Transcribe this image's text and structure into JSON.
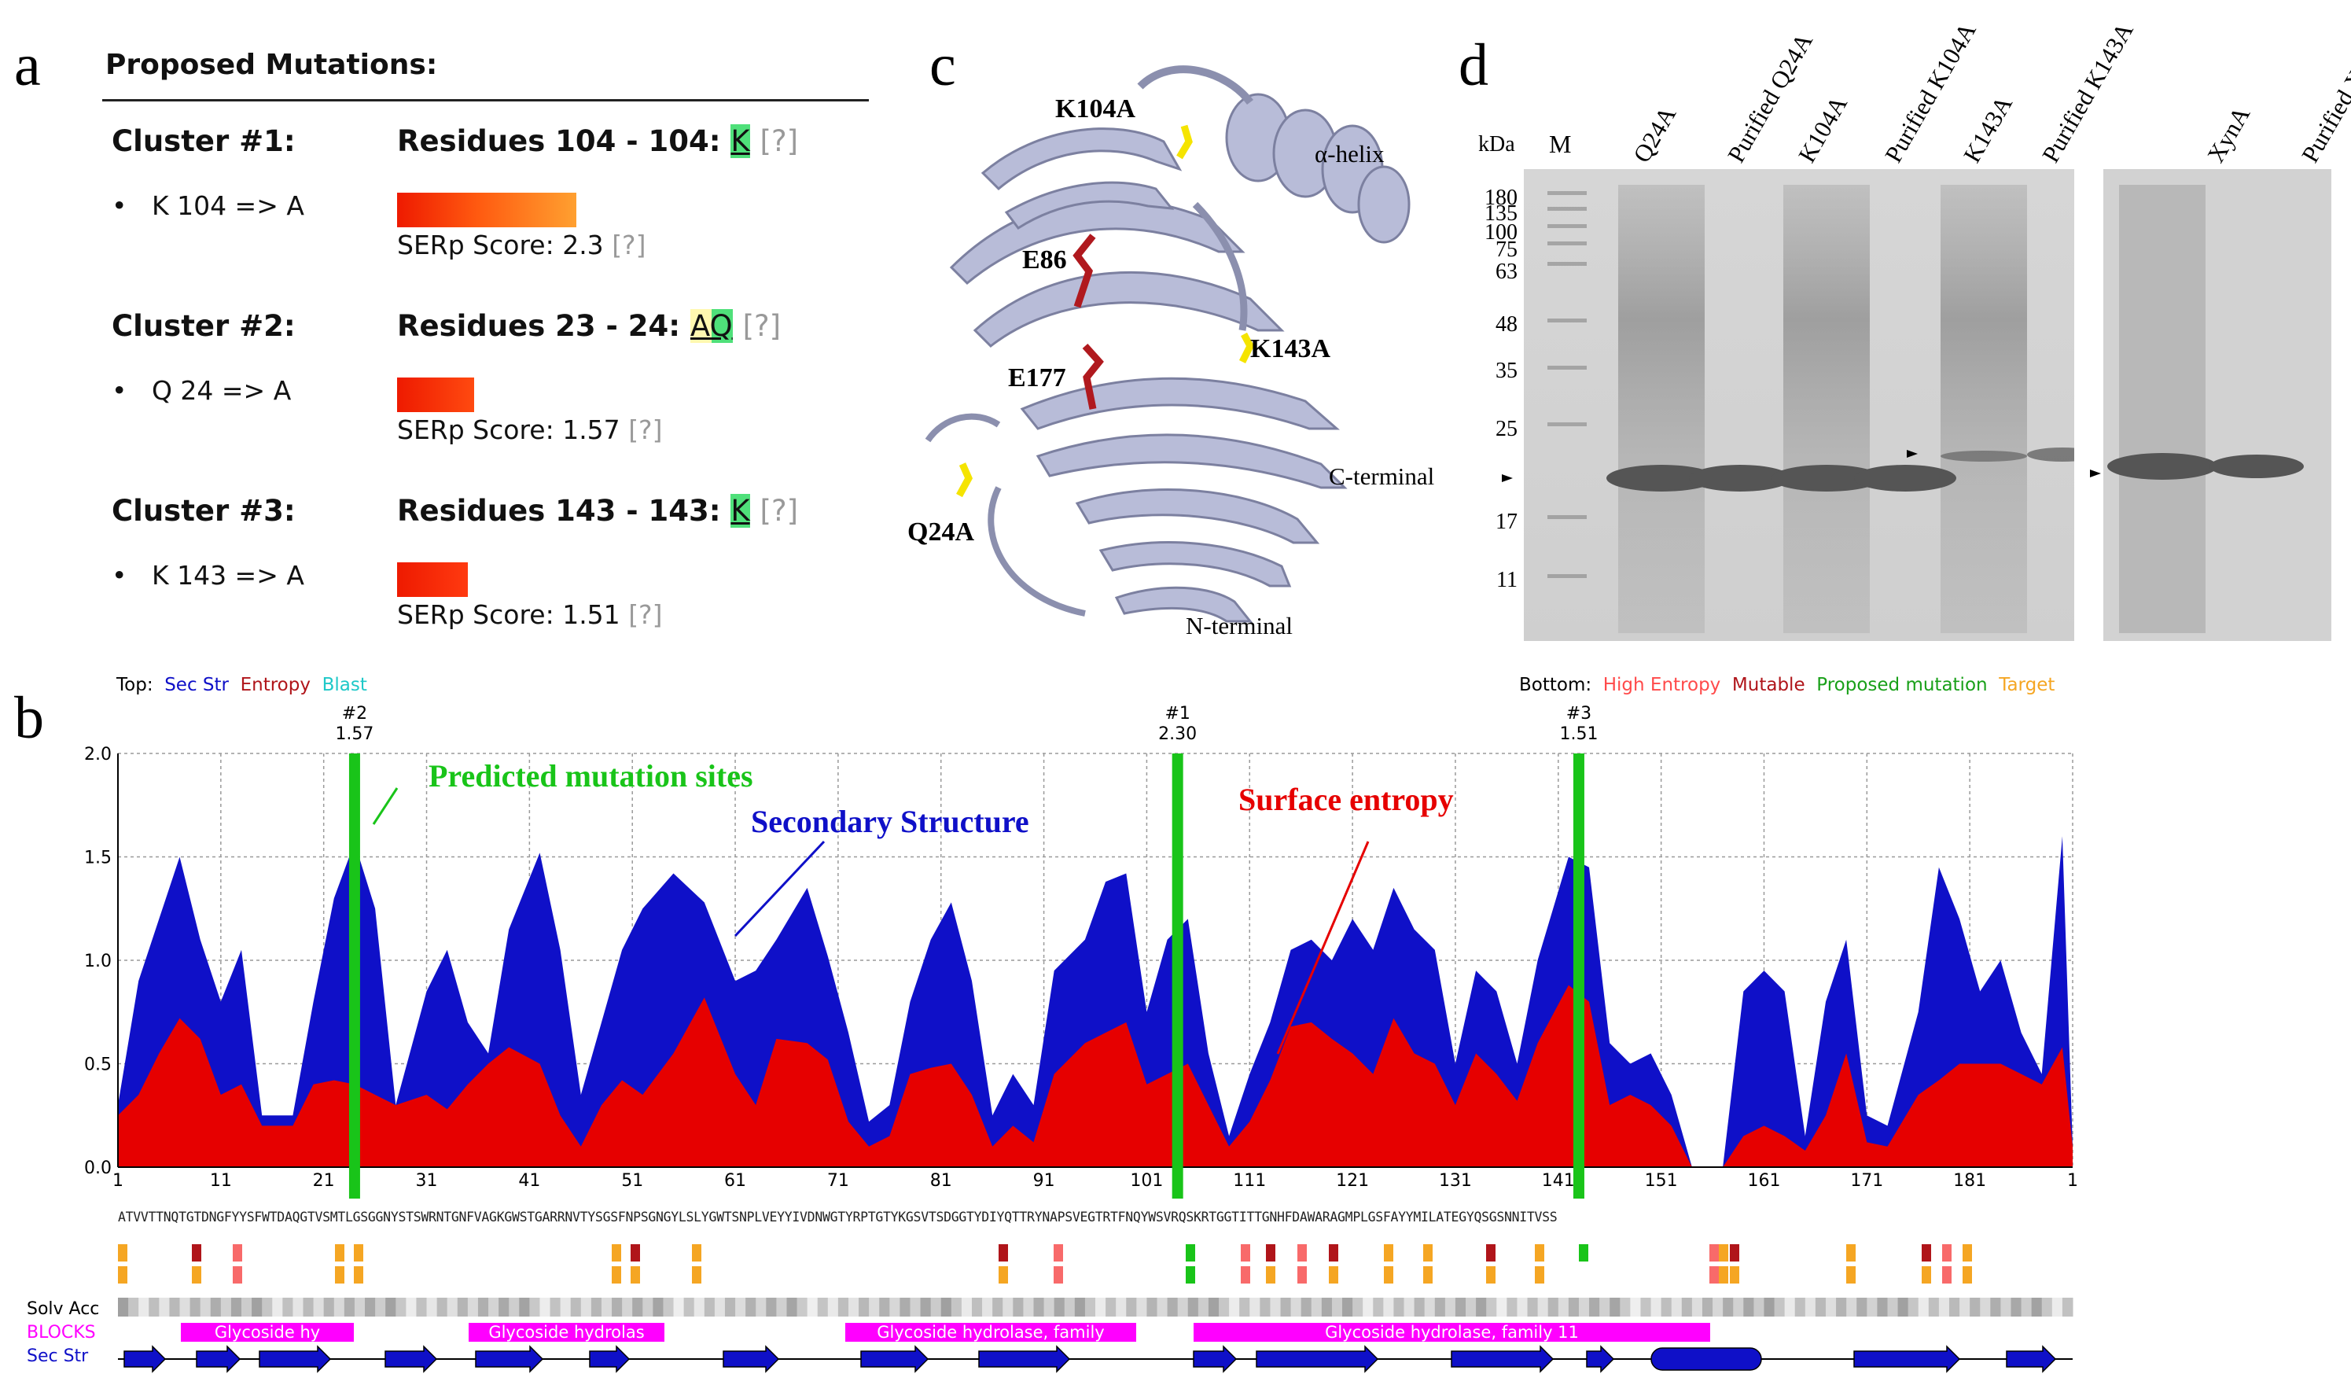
{
  "panels": {
    "a": "a",
    "b": "b",
    "c": "c",
    "d": "d"
  },
  "panel_a": {
    "title": "Proposed Mutations:",
    "clusters": [
      {
        "head": "Cluster #1:",
        "mutation": "K 104 => A",
        "residues_prefix": "Residues 104 - 104: ",
        "residues_hl": "K",
        "help": "[?]",
        "score_label": "SERp Score: 2.3",
        "score_help": "[?]",
        "score": 2.3
      },
      {
        "head": "Cluster #2:",
        "mutation": "Q 24 => A",
        "residues_prefix": "Residues 23 - 24: ",
        "residues_hl": "AQ",
        "help": "[?]",
        "score_label": "SERp Score: 1.57",
        "score_help": "[?]",
        "score": 1.57
      },
      {
        "head": "Cluster #3:",
        "mutation": "K 143 => A",
        "residues_prefix": "Residues 143 - 143: ",
        "residues_hl": "K",
        "help": "[?]",
        "score_label": "SERp Score: 1.51",
        "score_help": "[?]",
        "score": 1.51
      }
    ],
    "bullet": "•"
  },
  "panel_c": {
    "labels": {
      "k104": "K104A",
      "helix": "α-helix",
      "e86": "E86",
      "k143": "K143A",
      "e177": "E177",
      "cterm": "C-terminal",
      "q24": "Q24A",
      "nterm": "N-terminal"
    },
    "colors": {
      "ribbon": "#b8bcd8",
      "ribbon_dark": "#8b8fae",
      "active": "#b0191e",
      "mut": "#f5e400"
    }
  },
  "panel_d": {
    "kda_label": "kDa",
    "marker_label": "M",
    "lanes": [
      "Q24A",
      "Purified Q24A",
      "K104A",
      "Purified K104A",
      "K143A",
      "Purified K143A",
      "XynA",
      "Purified XynA"
    ],
    "mw": [
      "180",
      "135",
      "100",
      "75",
      "63",
      "48",
      "35",
      "25",
      "17",
      "11"
    ]
  },
  "panel_b": {
    "legend_top": {
      "prefix": "Top:",
      "sec": "Sec Str",
      "entropy": "Entropy",
      "blast": "Blast"
    },
    "legend_bottom": {
      "prefix": "Bottom:",
      "high": "High Entropy",
      "mutable": "Mutable",
      "proposed": "Proposed mutation",
      "target": "Target"
    },
    "markers": [
      {
        "id": "#2",
        "score": "1.57",
        "pos": 24
      },
      {
        "id": "#1",
        "score": "2.30",
        "pos": 104
      },
      {
        "id": "#3",
        "score": "1.51",
        "pos": 143
      }
    ],
    "annotations": {
      "predicted": "Predicted mutation sites",
      "secondary": "Secondary Structure",
      "surface": "Surface entropy"
    },
    "row_labels": {
      "solv": "Solv Acc",
      "blocks": "BLOCKS",
      "sec": "Sec Str"
    },
    "blocks": [
      "Glycoside hy",
      "Glycoside hydrolas",
      "Glycoside hydrolase, family",
      "Glycoside hydrolase, family 11"
    ],
    "sequence": "ATVVTTNQTGTDNGFYYSFWTDAQGTVSMTLGSGGNYSTSWRNTGNFVAGKGWSTGARRNVTYSGSFNPSGNGYLSLYGWTSNPLVEYYIVDNWGTYRPTGTYKGSVTSDGGTYDIYQTTRYNAPSVEGTRTFNQYWSVRQSKRTGGTITTGNHFDAWARAGMPLGSFAYYMILATEGYQSGSNNITVSS",
    "colors": {
      "blue": "#0f10c8",
      "red": "#e60000",
      "green": "#19c419",
      "magenta": "#ff00ff",
      "orange": "#f5a623",
      "darkred": "#b0151a",
      "pink": "#f86a6a"
    }
  },
  "chart_data": {
    "type": "area",
    "xlabel": "",
    "ylabel": "",
    "ylim": [
      0,
      2.0
    ],
    "xlim": [
      1,
      191
    ],
    "yticks": [
      "0.0",
      "0.5",
      "1.0",
      "1.5",
      "2.0"
    ],
    "xticks": [
      "1",
      "11",
      "21",
      "31",
      "41",
      "51",
      "61",
      "71",
      "81",
      "91",
      "101",
      "111",
      "121",
      "131",
      "141",
      "151",
      "161",
      "171",
      "181",
      "1"
    ],
    "series": [
      {
        "name": "Sec Str",
        "color": "#0f10c8",
        "points": [
          [
            1,
            0.3
          ],
          [
            3,
            0.9
          ],
          [
            5,
            1.2
          ],
          [
            7,
            1.5
          ],
          [
            9,
            1.1
          ],
          [
            11,
            0.8
          ],
          [
            13,
            1.05
          ],
          [
            15,
            0.25
          ],
          [
            18,
            0.25
          ],
          [
            20,
            0.8
          ],
          [
            22,
            1.3
          ],
          [
            24,
            1.57
          ],
          [
            26,
            1.25
          ],
          [
            28,
            0.3
          ],
          [
            31,
            0.85
          ],
          [
            33,
            1.05
          ],
          [
            35,
            0.7
          ],
          [
            37,
            0.55
          ],
          [
            39,
            1.15
          ],
          [
            42,
            1.52
          ],
          [
            44,
            1.05
          ],
          [
            46,
            0.35
          ],
          [
            48,
            0.7
          ],
          [
            50,
            1.05
          ],
          [
            52,
            1.25
          ],
          [
            55,
            1.42
          ],
          [
            58,
            1.28
          ],
          [
            61,
            0.9
          ],
          [
            63,
            0.95
          ],
          [
            65,
            1.1
          ],
          [
            68,
            1.35
          ],
          [
            70,
            1.02
          ],
          [
            72,
            0.65
          ],
          [
            74,
            0.22
          ],
          [
            76,
            0.3
          ],
          [
            78,
            0.8
          ],
          [
            80,
            1.1
          ],
          [
            82,
            1.28
          ],
          [
            84,
            0.9
          ],
          [
            86,
            0.25
          ],
          [
            88,
            0.45
          ],
          [
            90,
            0.3
          ],
          [
            92,
            0.95
          ],
          [
            95,
            1.1
          ],
          [
            97,
            1.38
          ],
          [
            99,
            1.42
          ],
          [
            101,
            0.75
          ],
          [
            103,
            1.1
          ],
          [
            105,
            1.2
          ],
          [
            107,
            0.55
          ],
          [
            109,
            0.15
          ],
          [
            111,
            0.45
          ],
          [
            113,
            0.7
          ],
          [
            115,
            1.05
          ],
          [
            117,
            1.1
          ],
          [
            119,
            1.0
          ],
          [
            121,
            1.2
          ],
          [
            123,
            1.05
          ],
          [
            125,
            1.35
          ],
          [
            127,
            1.15
          ],
          [
            129,
            1.05
          ],
          [
            131,
            0.5
          ],
          [
            133,
            0.95
          ],
          [
            135,
            0.85
          ],
          [
            137,
            0.5
          ],
          [
            139,
            1.0
          ],
          [
            142,
            1.5
          ],
          [
            144,
            1.45
          ],
          [
            146,
            0.6
          ],
          [
            148,
            0.5
          ],
          [
            150,
            0.55
          ],
          [
            152,
            0.35
          ],
          [
            154,
            0.0
          ],
          [
            157,
            0.0
          ],
          [
            159,
            0.85
          ],
          [
            161,
            0.95
          ],
          [
            163,
            0.85
          ],
          [
            165,
            0.15
          ],
          [
            167,
            0.8
          ],
          [
            169,
            1.1
          ],
          [
            171,
            0.25
          ],
          [
            173,
            0.2
          ],
          [
            176,
            0.75
          ],
          [
            178,
            1.45
          ],
          [
            180,
            1.2
          ],
          [
            182,
            0.85
          ],
          [
            184,
            1.0
          ],
          [
            186,
            0.65
          ],
          [
            188,
            0.45
          ],
          [
            190,
            1.6
          ],
          [
            191,
            0.1
          ]
        ]
      },
      {
        "name": "Entropy",
        "color": "#e60000",
        "points": [
          [
            1,
            0.25
          ],
          [
            3,
            0.35
          ],
          [
            5,
            0.55
          ],
          [
            7,
            0.72
          ],
          [
            9,
            0.62
          ],
          [
            11,
            0.35
          ],
          [
            13,
            0.4
          ],
          [
            15,
            0.2
          ],
          [
            18,
            0.2
          ],
          [
            20,
            0.4
          ],
          [
            22,
            0.42
          ],
          [
            24,
            0.4
          ],
          [
            26,
            0.35
          ],
          [
            28,
            0.3
          ],
          [
            31,
            0.35
          ],
          [
            33,
            0.28
          ],
          [
            35,
            0.4
          ],
          [
            37,
            0.5
          ],
          [
            39,
            0.58
          ],
          [
            42,
            0.5
          ],
          [
            44,
            0.25
          ],
          [
            46,
            0.1
          ],
          [
            48,
            0.3
          ],
          [
            50,
            0.42
          ],
          [
            52,
            0.35
          ],
          [
            55,
            0.55
          ],
          [
            58,
            0.82
          ],
          [
            61,
            0.45
          ],
          [
            63,
            0.3
          ],
          [
            65,
            0.62
          ],
          [
            68,
            0.6
          ],
          [
            70,
            0.52
          ],
          [
            72,
            0.22
          ],
          [
            74,
            0.1
          ],
          [
            76,
            0.15
          ],
          [
            78,
            0.45
          ],
          [
            80,
            0.48
          ],
          [
            82,
            0.5
          ],
          [
            84,
            0.35
          ],
          [
            86,
            0.1
          ],
          [
            88,
            0.2
          ],
          [
            90,
            0.12
          ],
          [
            92,
            0.45
          ],
          [
            95,
            0.6
          ],
          [
            97,
            0.65
          ],
          [
            99,
            0.7
          ],
          [
            101,
            0.4
          ],
          [
            103,
            0.45
          ],
          [
            105,
            0.5
          ],
          [
            107,
            0.3
          ],
          [
            109,
            0.1
          ],
          [
            111,
            0.22
          ],
          [
            113,
            0.42
          ],
          [
            115,
            0.68
          ],
          [
            117,
            0.7
          ],
          [
            119,
            0.62
          ],
          [
            121,
            0.55
          ],
          [
            123,
            0.45
          ],
          [
            125,
            0.72
          ],
          [
            127,
            0.55
          ],
          [
            129,
            0.5
          ],
          [
            131,
            0.3
          ],
          [
            133,
            0.55
          ],
          [
            135,
            0.45
          ],
          [
            137,
            0.32
          ],
          [
            139,
            0.6
          ],
          [
            142,
            0.88
          ],
          [
            144,
            0.8
          ],
          [
            146,
            0.3
          ],
          [
            148,
            0.35
          ],
          [
            150,
            0.3
          ],
          [
            152,
            0.2
          ],
          [
            154,
            0.0
          ],
          [
            157,
            0.0
          ],
          [
            159,
            0.15
          ],
          [
            161,
            0.2
          ],
          [
            163,
            0.15
          ],
          [
            165,
            0.08
          ],
          [
            167,
            0.25
          ],
          [
            169,
            0.55
          ],
          [
            171,
            0.12
          ],
          [
            173,
            0.1
          ],
          [
            176,
            0.35
          ],
          [
            178,
            0.42
          ],
          [
            180,
            0.5
          ],
          [
            182,
            0.5
          ],
          [
            184,
            0.5
          ],
          [
            186,
            0.45
          ],
          [
            188,
            0.4
          ],
          [
            190,
            0.58
          ],
          [
            191,
            0.1
          ]
        ]
      }
    ]
  }
}
